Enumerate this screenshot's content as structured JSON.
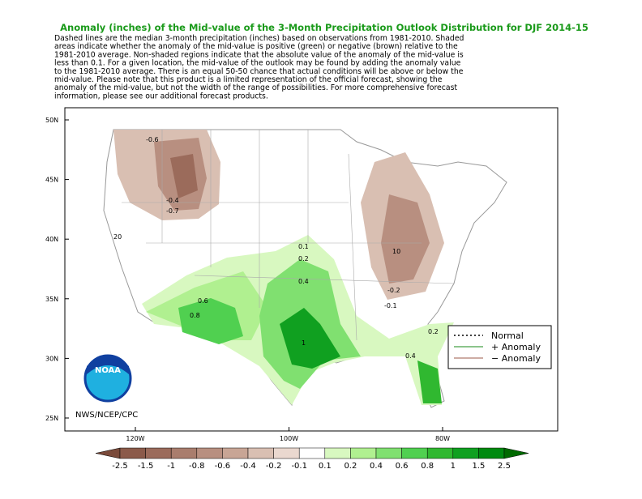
{
  "title": "Anomaly (inches) of the Mid-value of the 3-Month Precipitation Outlook Distribution for DJF 2014-15",
  "description": [
    "Dashed lines are the median 3-month precipitation (inches) based on observations from 1981-2010.  Shaded",
    "areas indicate whether the anomaly of the mid-value is positive (green) or negative (brown) relative to the",
    "1981-2010 average.   Non-shaded regions indicate that the absolute value of the anomaly of the mid-value is",
    "less than 0.1.   For a given location, the mid-value of the outlook may be found by adding the anomaly value",
    "to the 1981-2010 average. There is an equal 50-50 chance that actual conditions will be above or below the",
    "mid-value. Please note that this product is a limited representation of the official forecast, showing the",
    "anomaly of the mid-value, but not the width of the range of possibilities. For more comprehensive forecast",
    "information, please see our additional forecast products."
  ],
  "map": {
    "lat_labels": [
      "50N",
      "45N",
      "40N",
      "35N",
      "30N",
      "25N"
    ],
    "lon_labels": [
      "120W",
      "100W",
      "80W"
    ],
    "credit": "NWS/NCEP/CPC",
    "logo": "NOAA",
    "contour_labels": [
      "-0.6",
      "-0.4",
      "-0.7",
      "0.1",
      "0.2",
      "0.4",
      "0.6",
      "0.8",
      "1",
      "-0.2",
      "-0.1",
      "0.2",
      "0.4",
      "10",
      "20"
    ]
  },
  "legend": [
    "Normal",
    "+ Anomaly",
    "−  Anomaly"
  ],
  "colorbar": {
    "labels": [
      "-2.5",
      "-1.5",
      "-1",
      "-0.8",
      "-0.6",
      "-0.4",
      "-0.2",
      "-0.1",
      "0.1",
      "0.2",
      "0.4",
      "0.6",
      "0.8",
      "1",
      "1.5",
      "2.5"
    ],
    "colors": [
      "#7a4a3a",
      "#8b5a4a",
      "#9b6b5b",
      "#a97d6d",
      "#b88f80",
      "#c8a595",
      "#d9bfb2",
      "#ead8cf",
      "#ffffff",
      "#d8f8c0",
      "#b0f090",
      "#80e070",
      "#50d050",
      "#30b830",
      "#10a020",
      "#008a10",
      "#006a00"
    ]
  }
}
